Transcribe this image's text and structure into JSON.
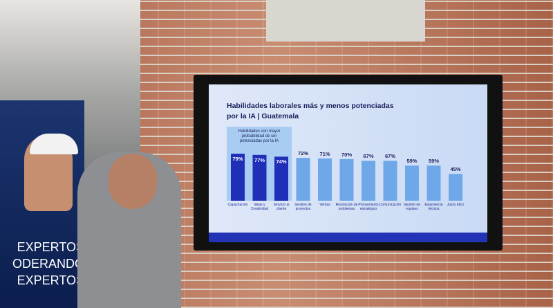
{
  "banner": {
    "lines": [
      "EXPERTOS",
      "ODERANDO",
      "EXPERTOS"
    ]
  },
  "chart_data": {
    "type": "bar",
    "title": "Habilidades laborales más y menos potenciadas por la IA | Guatemala",
    "annotation": "Habilidades con mayor probabilidad de ser potenciadas por la IA",
    "categories": [
      "Capacitación",
      "Ideas y Creatividad",
      "Servicio al cliente",
      "Gestión de proyectos",
      "Ventas",
      "Resolución de problemas",
      "Pensamiento estratégico",
      "Comunicación",
      "Gestión de equipos",
      "Experiencia técnica",
      "Juicio ético"
    ],
    "values": [
      79,
      77,
      74,
      72,
      71,
      70,
      67,
      67,
      59,
      59,
      45
    ],
    "value_labels": [
      "79%",
      "77%",
      "74%",
      "72%",
      "71%",
      "70%",
      "67%",
      "67%",
      "59%",
      "59%",
      "45%"
    ],
    "colors": [
      "#1f2fb8",
      "#1f2fb8",
      "#1f2fb8",
      "#6fa8e8",
      "#6fa8e8",
      "#6fa8e8",
      "#6fa8e8",
      "#6fa8e8",
      "#6fa8e8",
      "#6fa8e8",
      "#6fa8e8"
    ]
  }
}
